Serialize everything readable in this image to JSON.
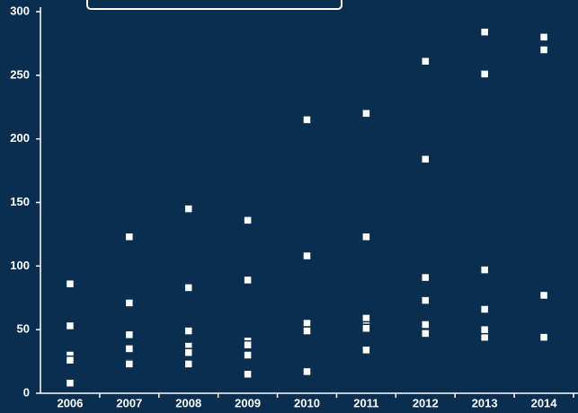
{
  "chart_data": {
    "type": "line",
    "categories": [
      "2006",
      "2007",
      "2008",
      "2009",
      "2010",
      "2011",
      "2012",
      "2013",
      "2014"
    ],
    "series": [
      {
        "color": "#d6246e",
        "values": [
          86,
          123,
          145,
          136,
          215,
          220,
          261,
          284,
          280
        ]
      },
      {
        "color": "#3fbf5a",
        "values": [
          53,
          71,
          83,
          89,
          108,
          123,
          184,
          251,
          270
        ]
      },
      {
        "color": "#1fa3d9",
        "values": [
          28,
          24,
          49,
          41,
          55,
          59,
          91,
          97,
          77
        ]
      },
      {
        "color": "#f2e600",
        "values": [
          30,
          46,
          37,
          38,
          49,
          53,
          73,
          66,
          45
        ]
      },
      {
        "color": "#f0642a",
        "values": [
          26,
          35,
          32,
          30,
          49,
          51,
          47,
          44,
          44
        ]
      },
      {
        "color": "#9a9a9a",
        "values": [
          8,
          23,
          23,
          15,
          17,
          34,
          54,
          50,
          44
        ]
      }
    ],
    "ylim": [
      0,
      300
    ],
    "yticks": [
      0,
      50,
      100,
      150,
      200,
      250,
      300
    ],
    "grid": false
  }
}
